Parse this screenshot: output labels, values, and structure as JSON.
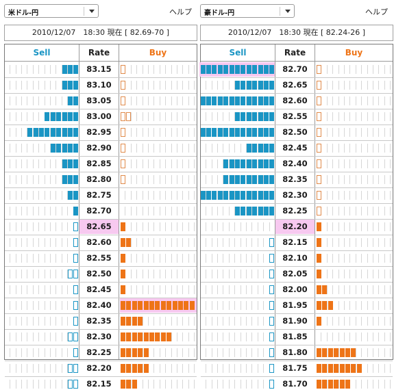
{
  "colors": {
    "sell": "#1a95c4",
    "buy": "#ee7417",
    "highlight": "#f7c9f0"
  },
  "panels": [
    {
      "pair": "米ドル-円",
      "help": "ヘルプ",
      "info": "2010/12/07　18:30 現在 [ 82.69-70 ]",
      "headers": {
        "sell": "Sell",
        "rate": "Rate",
        "buy": "Buy"
      },
      "rows": [
        {
          "rate": "83.15",
          "sell": 3,
          "buy": 0,
          "buy_hollow": true
        },
        {
          "rate": "83.10",
          "sell": 3,
          "buy": 0,
          "buy_hollow": true
        },
        {
          "rate": "83.05",
          "sell": 2,
          "buy": 0,
          "buy_hollow": true
        },
        {
          "rate": "83.00",
          "sell": 6,
          "buy": 0,
          "buy_hollow": 2
        },
        {
          "rate": "82.95",
          "sell": 9,
          "buy": 0,
          "buy_hollow": true
        },
        {
          "rate": "82.90",
          "sell": 5,
          "buy": 0,
          "buy_hollow": true
        },
        {
          "rate": "82.85",
          "sell": 3,
          "buy": 0,
          "buy_hollow": true
        },
        {
          "rate": "82.80",
          "sell": 3,
          "buy": 0,
          "buy_hollow": true
        },
        {
          "rate": "82.75",
          "sell": 2,
          "buy": 0
        },
        {
          "rate": "82.70",
          "sell": 1,
          "buy": 0
        },
        {
          "rate": "82.65",
          "sell": 0,
          "sell_hollow": 1,
          "buy": 1,
          "rate_highlight": true
        },
        {
          "rate": "82.60",
          "sell": 0,
          "sell_hollow": 1,
          "buy": 2
        },
        {
          "rate": "82.55",
          "sell": 0,
          "sell_hollow": 1,
          "buy": 1
        },
        {
          "rate": "82.50",
          "sell": 0,
          "sell_hollow": 2,
          "buy": 1
        },
        {
          "rate": "82.45",
          "sell": 0,
          "sell_hollow": 1,
          "buy": 1
        },
        {
          "rate": "82.40",
          "sell": 0,
          "sell_hollow": 1,
          "buy": 13,
          "buy_highlight": true
        },
        {
          "rate": "82.35",
          "sell": 0,
          "sell_hollow": 1,
          "buy": 4
        },
        {
          "rate": "82.30",
          "sell": 0,
          "sell_hollow": 2,
          "buy": 9
        },
        {
          "rate": "82.25",
          "sell": 0,
          "sell_hollow": 1,
          "buy": 5
        },
        {
          "rate": "82.20",
          "sell": 0,
          "sell_hollow": 2,
          "buy": 5
        },
        {
          "rate": "82.15",
          "sell": 0,
          "sell_hollow": 2,
          "buy": 3
        }
      ]
    },
    {
      "pair": "豪ドル-円",
      "help": "ヘルプ",
      "info": "2010/12/07　18:30 現在 [ 82.24-26 ]",
      "headers": {
        "sell": "Sell",
        "rate": "Rate",
        "buy": "Buy"
      },
      "rows": [
        {
          "rate": "82.70",
          "sell": 13,
          "buy": 0,
          "buy_hollow": true,
          "sell_highlight": true
        },
        {
          "rate": "82.65",
          "sell": 7,
          "buy": 0,
          "buy_hollow": true
        },
        {
          "rate": "82.60",
          "sell": 13,
          "buy": 0,
          "buy_hollow": true
        },
        {
          "rate": "82.55",
          "sell": 7,
          "buy": 0,
          "buy_hollow": true
        },
        {
          "rate": "82.50",
          "sell": 13,
          "buy": 0,
          "buy_hollow": true
        },
        {
          "rate": "82.45",
          "sell": 5,
          "buy": 0,
          "buy_hollow": true
        },
        {
          "rate": "82.40",
          "sell": 9,
          "buy": 0,
          "buy_hollow": true
        },
        {
          "rate": "82.35",
          "sell": 9,
          "buy": 0,
          "buy_hollow": true
        },
        {
          "rate": "82.30",
          "sell": 13,
          "buy": 0,
          "buy_hollow": true
        },
        {
          "rate": "82.25",
          "sell": 7,
          "buy": 0,
          "buy_hollow": true
        },
        {
          "rate": "82.20",
          "sell": 0,
          "buy": 1,
          "rate_highlight": true
        },
        {
          "rate": "82.15",
          "sell": 0,
          "sell_hollow": 1,
          "buy": 1
        },
        {
          "rate": "82.10",
          "sell": 0,
          "sell_hollow": 1,
          "buy": 1
        },
        {
          "rate": "82.05",
          "sell": 0,
          "sell_hollow": 1,
          "buy": 1
        },
        {
          "rate": "82.00",
          "sell": 0,
          "sell_hollow": 1,
          "buy": 2
        },
        {
          "rate": "81.95",
          "sell": 0,
          "sell_hollow": 1,
          "buy": 3
        },
        {
          "rate": "81.90",
          "sell": 0,
          "sell_hollow": 1,
          "buy": 1
        },
        {
          "rate": "81.85",
          "sell": 0,
          "sell_hollow": 1,
          "buy": 0
        },
        {
          "rate": "81.80",
          "sell": 0,
          "sell_hollow": 1,
          "buy": 7
        },
        {
          "rate": "81.75",
          "sell": 0,
          "sell_hollow": 1,
          "buy": 8
        },
        {
          "rate": "81.70",
          "sell": 0,
          "sell_hollow": 1,
          "buy": 6
        }
      ]
    }
  ]
}
